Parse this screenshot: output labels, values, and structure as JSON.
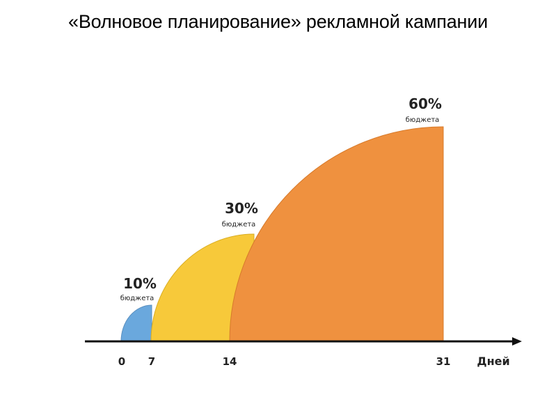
{
  "title": "«Волновое планирование» рекламной кампании",
  "waves": [
    {
      "percent": "10%",
      "caption": "бюджета",
      "start_day": 0,
      "end_day": 7,
      "color": "#6aa8dd"
    },
    {
      "percent": "30%",
      "caption": "бюджета",
      "start_day": 7,
      "end_day": 14,
      "color": "#f7c93a"
    },
    {
      "percent": "60%",
      "caption": "бюджета",
      "start_day": 14,
      "end_day": 31,
      "color": "#ef913f"
    }
  ],
  "axis": {
    "ticks": [
      "0",
      "7",
      "14",
      "31"
    ],
    "unit_label": "Дней",
    "color": "#111111"
  }
}
